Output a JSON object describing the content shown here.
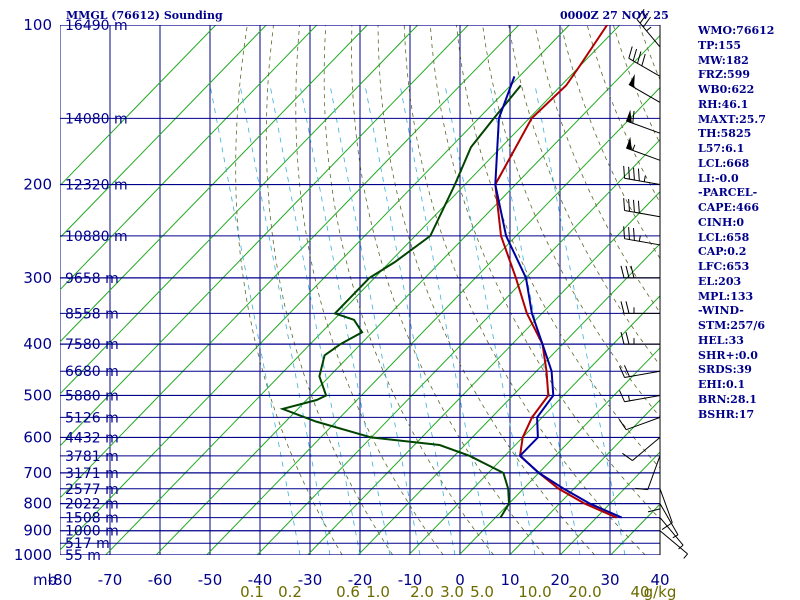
{
  "chart_data": {
    "type": "line",
    "title": "MMGL (76612) Sounding",
    "date": "0000Z 27 NOV 25",
    "xlabel": "",
    "ylabel": "",
    "pressure_ticks": [
      "100",
      "200",
      "300",
      "400",
      "500",
      "600",
      "700",
      "800",
      "900",
      "1000"
    ],
    "pressure_unit": "mb",
    "temperature_ticks": [
      "-80",
      "-70",
      "-60",
      "-50",
      "-40",
      "-30",
      "-20",
      "-10",
      "0",
      "10",
      "20",
      "30",
      "40"
    ],
    "mixing_ratio_ticks": [
      "0.1",
      "0.2",
      "0.6",
      "1.0",
      "2.0",
      "3.0",
      "5.0",
      "10.0",
      "20.0",
      "40"
    ],
    "mixing_ratio_unit": "g/kg",
    "height_labels": [
      {
        "p": 100,
        "label": "16490 m"
      },
      {
        "p": 150,
        "label": "14080 m"
      },
      {
        "p": 200,
        "label": "12320 m"
      },
      {
        "p": 250,
        "label": "10880 m"
      },
      {
        "p": 300,
        "label": "9658 m"
      },
      {
        "p": 350,
        "label": "8558 m"
      },
      {
        "p": 400,
        "label": "7580 m"
      },
      {
        "p": 450,
        "label": "6680 m"
      },
      {
        "p": 500,
        "label": "5880 m"
      },
      {
        "p": 550,
        "label": "5126 m"
      },
      {
        "p": 600,
        "label": "4432 m"
      },
      {
        "p": 650,
        "label": "3781 m"
      },
      {
        "p": 700,
        "label": "3171 m"
      },
      {
        "p": 750,
        "label": "2577 m"
      },
      {
        "p": 800,
        "label": "2022 m"
      },
      {
        "p": 850,
        "label": "1508 m"
      },
      {
        "p": 900,
        "label": "1000 m"
      },
      {
        "p": 950,
        "label": "517 m"
      },
      {
        "p": 1000,
        "label": "55 m"
      }
    ],
    "series": [
      {
        "name": "",
        "color": "#b00000",
        "points": [
          [
            100,
            -72.5
          ],
          [
            120,
            -70
          ],
          [
            130,
            -69
          ],
          [
            150,
            -69.5
          ],
          [
            200,
            -64
          ],
          [
            250,
            -53
          ],
          [
            300,
            -42
          ],
          [
            350,
            -33
          ],
          [
            400,
            -24
          ],
          [
            450,
            -18
          ],
          [
            500,
            -13
          ],
          [
            550,
            -12
          ],
          [
            600,
            -10
          ],
          [
            650,
            -7
          ],
          [
            700,
            0
          ],
          [
            750,
            7
          ],
          [
            800,
            15
          ],
          [
            850,
            24
          ]
        ]
      },
      {
        "name": "",
        "color": "#004400",
        "points": [
          [
            130,
            -78
          ],
          [
            150,
            -77
          ],
          [
            170,
            -76
          ],
          [
            200,
            -72
          ],
          [
            250,
            -67
          ],
          [
            280,
            -69
          ],
          [
            300,
            -71
          ],
          [
            350,
            -71
          ],
          [
            360,
            -66
          ],
          [
            380,
            -62
          ],
          [
            400,
            -64
          ],
          [
            420,
            -65
          ],
          [
            460,
            -62
          ],
          [
            500,
            -57
          ],
          [
            510,
            -58
          ],
          [
            530,
            -63
          ],
          [
            560,
            -54
          ],
          [
            600,
            -40
          ],
          [
            620,
            -25
          ],
          [
            650,
            -17
          ],
          [
            700,
            -7
          ],
          [
            750,
            -3
          ],
          [
            800,
            0
          ],
          [
            850,
            1
          ]
        ]
      },
      {
        "name": "",
        "color": "#0000a0",
        "points": [
          [
            125,
            -81
          ],
          [
            150,
            -76
          ],
          [
            200,
            -64
          ],
          [
            250,
            -52
          ],
          [
            300,
            -40
          ],
          [
            350,
            -32
          ],
          [
            400,
            -24
          ],
          [
            450,
            -17
          ],
          [
            500,
            -12
          ],
          [
            550,
            -11
          ],
          [
            600,
            -7
          ],
          [
            650,
            -7
          ],
          [
            700,
            0
          ],
          [
            750,
            8
          ],
          [
            800,
            16
          ],
          [
            850,
            25
          ]
        ]
      }
    ],
    "wind_barbs": [
      {
        "p": 110,
        "dir": 320,
        "spd": 35
      },
      {
        "p": 125,
        "dir": 300,
        "spd": 40
      },
      {
        "p": 140,
        "dir": 300,
        "spd": 50
      },
      {
        "p": 160,
        "dir": 290,
        "spd": 60
      },
      {
        "p": 180,
        "dir": 290,
        "spd": 55
      },
      {
        "p": 200,
        "dir": 280,
        "spd": 45
      },
      {
        "p": 230,
        "dir": 280,
        "spd": 40
      },
      {
        "p": 260,
        "dir": 280,
        "spd": 35
      },
      {
        "p": 300,
        "dir": 270,
        "spd": 30
      },
      {
        "p": 350,
        "dir": 270,
        "spd": 25
      },
      {
        "p": 400,
        "dir": 270,
        "spd": 25
      },
      {
        "p": 450,
        "dir": 260,
        "spd": 20
      },
      {
        "p": 500,
        "dir": 260,
        "spd": 15
      },
      {
        "p": 550,
        "dir": 250,
        "spd": 10
      },
      {
        "p": 600,
        "dir": 230,
        "spd": 10
      },
      {
        "p": 650,
        "dir": 200,
        "spd": 10
      },
      {
        "p": 700,
        "dir": 180,
        "spd": 10
      },
      {
        "p": 750,
        "dir": 160,
        "spd": 10
      },
      {
        "p": 800,
        "dir": 150,
        "spd": 5
      },
      {
        "p": 850,
        "dir": 140,
        "spd": 5
      },
      {
        "p": 900,
        "dir": 130,
        "spd": 5
      }
    ]
  },
  "indices": [
    "WMO:76612",
    "TP:155",
    "MW:182",
    "FRZ:599",
    "WB0:622",
    "RH:46.1",
    "MAXT:25.7",
    "TH:5825",
    "L57:6.1",
    "LCL:668",
    "LI:-0.0",
    "-PARCEL-",
    "CAPE:466",
    "CINH:0",
    "LCL:658",
    "CAP:0.2",
    "LFC:653",
    "EL:203",
    "MPL:133",
    "-WIND-",
    "STM:257/6",
    "HEL:33",
    "SHR+:0.0",
    "SRDS:39",
    "EHI:0.1",
    "BRN:28.1",
    "BSHR:17"
  ]
}
